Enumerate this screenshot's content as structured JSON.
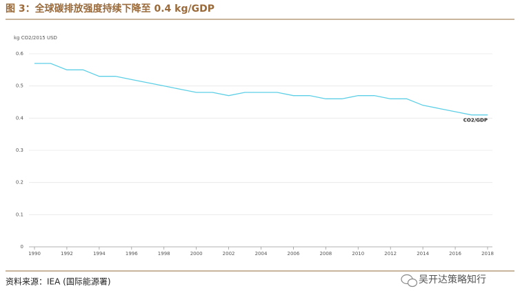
{
  "chart_data": {
    "type": "line",
    "title": "图 3：全球碳排放强度持续下降至 0.4 kg/GDP",
    "y_label": "kg CO2/2015 USD",
    "source": "资料来源：IEA (国际能源署)",
    "watermark": "吴开达策略知行",
    "x": [
      1990,
      1991,
      1992,
      1993,
      1994,
      1995,
      1996,
      1997,
      1998,
      1999,
      2000,
      2001,
      2002,
      2003,
      2004,
      2005,
      2006,
      2007,
      2008,
      2009,
      2010,
      2011,
      2012,
      2013,
      2014,
      2015,
      2016,
      2017,
      2018
    ],
    "series": [
      {
        "name": "CO2/GDP",
        "color": "#5ccfe6",
        "values": [
          0.57,
          0.57,
          0.55,
          0.55,
          0.53,
          0.53,
          0.52,
          0.51,
          0.5,
          0.49,
          0.48,
          0.48,
          0.47,
          0.48,
          0.48,
          0.48,
          0.47,
          0.47,
          0.46,
          0.46,
          0.47,
          0.47,
          0.46,
          0.46,
          0.44,
          0.43,
          0.42,
          0.41,
          0.41
        ]
      }
    ],
    "xlim": [
      1990,
      2018
    ],
    "xticks": [
      1990,
      1992,
      1994,
      1996,
      1998,
      2000,
      2002,
      2004,
      2006,
      2008,
      2010,
      2012,
      2014,
      2016,
      2018
    ],
    "ylim": [
      0,
      0.6
    ],
    "yticks": [
      0,
      0.1,
      0.2,
      0.3,
      0.4,
      0.5,
      0.6
    ],
    "grid": true
  }
}
